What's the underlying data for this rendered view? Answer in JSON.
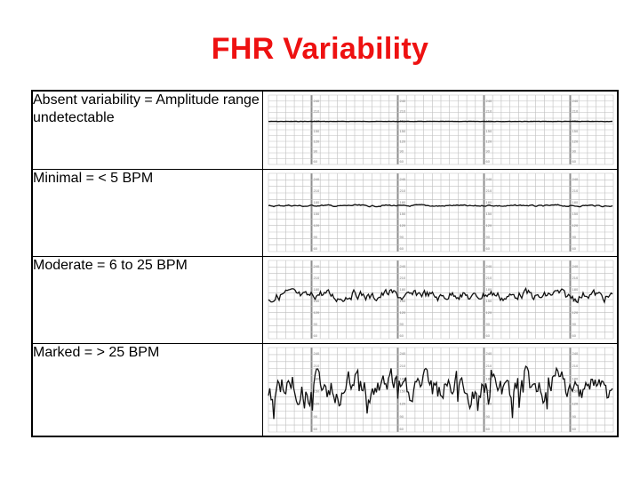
{
  "title": "FHR Variability",
  "rows": [
    {
      "label": "Absent variability = Amplitude range undetectable",
      "amplitude": 0,
      "noise": 0.3
    },
    {
      "label": "Minimal = < 5 BPM",
      "amplitude": 2,
      "noise": 1.2
    },
    {
      "label": "Moderate = 6 to 25 BPM",
      "amplitude": 12,
      "noise": 3.5
    },
    {
      "label": "Marked = > 25 BPM",
      "amplitude": 30,
      "noise": 6
    }
  ],
  "strip_scale": [
    "240",
    "210",
    "180",
    "150",
    "120",
    "90",
    "60"
  ],
  "colors": {
    "title": "#ee1111",
    "trace": "#111111",
    "grid": "#bfbfbf",
    "grid_major": "#8f8f8f"
  }
}
